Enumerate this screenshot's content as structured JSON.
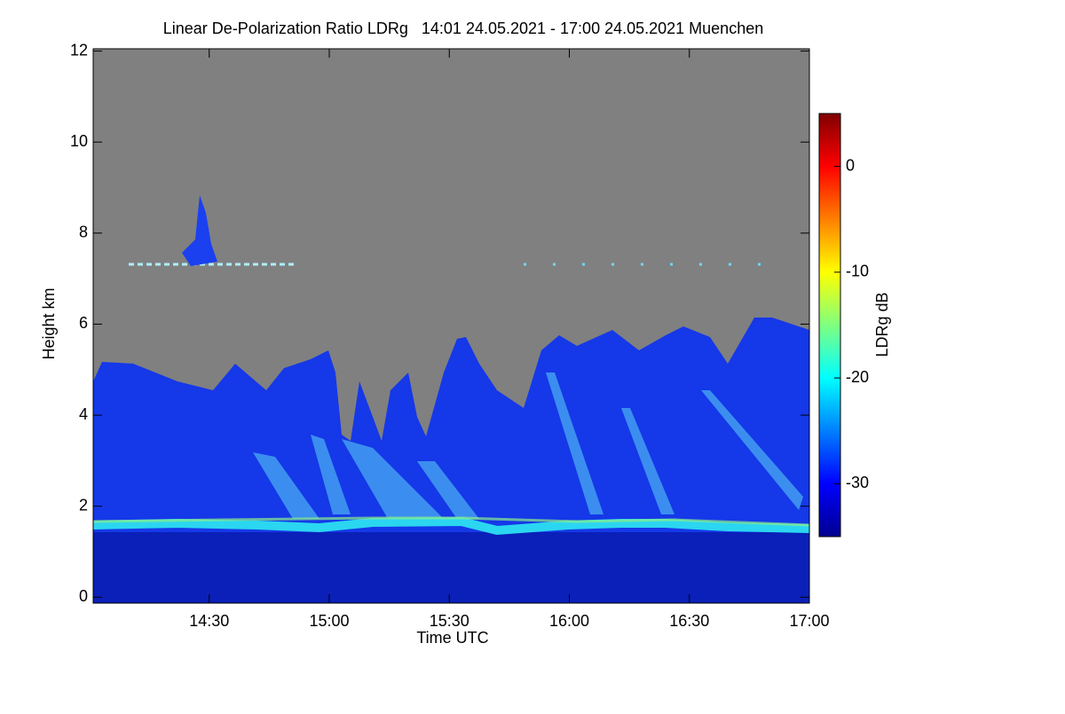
{
  "chart_data": {
    "type": "heatmap",
    "title": "Linear De-Polarization Ratio LDRg   14:01 24.05.2021 - 17:00 24.05.2021 Muenchen",
    "xlabel": "Time UTC",
    "ylabel": "Height km",
    "xlim": [
      14.0167,
      17.0
    ],
    "xticks": [
      {
        "value": 14.5,
        "label": "14:30"
      },
      {
        "value": 15.0,
        "label": "15:00"
      },
      {
        "value": 15.5,
        "label": "15:30"
      },
      {
        "value": 16.0,
        "label": "16:00"
      },
      {
        "value": 16.5,
        "label": "16:30"
      },
      {
        "value": 17.0,
        "label": "17:00"
      }
    ],
    "ylim": [
      -0.13,
      12.05
    ],
    "yticks": [
      0,
      2,
      4,
      6,
      8,
      10,
      12
    ],
    "colorbar": {
      "label": "LDRg dB",
      "lim": [
        -35,
        5
      ],
      "ticks": [
        0,
        -10,
        -20,
        -30
      ]
    }
  }
}
